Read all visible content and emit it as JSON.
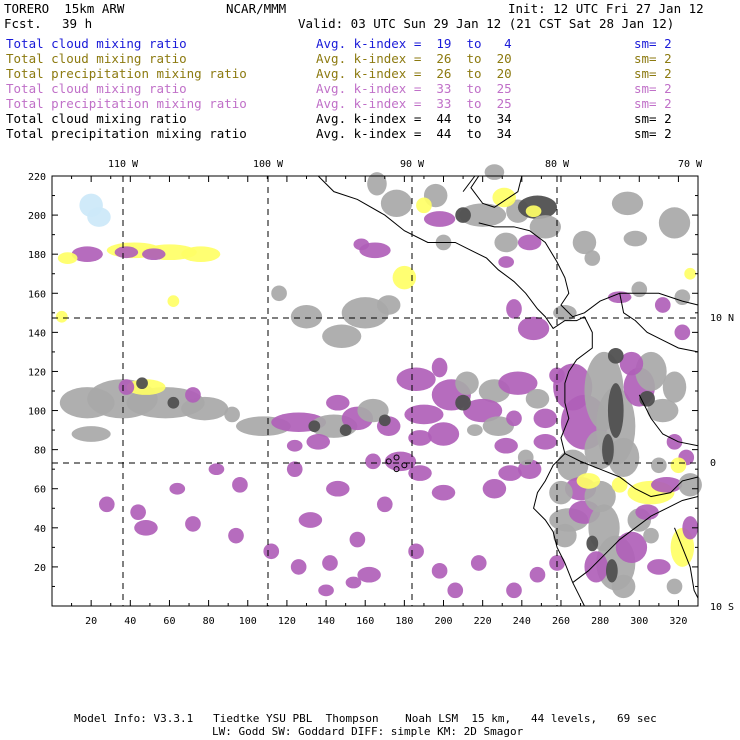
{
  "header": {
    "model": "TORERO  15km ARW",
    "org": "NCAR/MMM",
    "init": "Init: 12 UTC Fri 27 Jan 12",
    "fcst_label": "Fcst.",
    "fcst_value": "39 h",
    "valid": "Valid: 03 UTC Sun 29 Jan 12 (21 CST Sat 28 Jan 12)"
  },
  "legend": [
    {
      "field": "Total cloud mixing ratio",
      "index": "Avg. k-index =  19  to   4",
      "sm": "sm= 2",
      "color": "#1a1ad8"
    },
    {
      "field": "Total cloud mixing ratio",
      "index": "Avg. k-index =  26  to  20",
      "sm": "sm= 2",
      "color": "#8c7a10"
    },
    {
      "field": "Total precipitation mixing ratio",
      "index": "Avg. k-index =  26  to  20",
      "sm": "sm= 2",
      "color": "#8c7a10"
    },
    {
      "field": "Total cloud mixing ratio",
      "index": "Avg. k-index =  33  to  25",
      "sm": "sm= 2",
      "color": "#c070c8"
    },
    {
      "field": "Total precipitation mixing ratio",
      "index": "Avg. k-index =  33  to  25",
      "sm": "sm= 2",
      "color": "#c070c8"
    },
    {
      "field": "Total cloud mixing ratio",
      "index": "Avg. k-index =  44  to  34",
      "sm": "sm= 2",
      "color": "#000000"
    },
    {
      "field": "Total precipitation mixing ratio",
      "index": "Avg. k-index =  44  to  34",
      "sm": "sm= 2",
      "color": "#000000"
    }
  ],
  "map": {
    "lon_labels": [
      "110 W",
      "100 W",
      "90 W",
      "80 W",
      "70 W"
    ],
    "lat_labels": [
      "10 N",
      "0",
      "10 S"
    ],
    "x_ticks": [
      "20",
      "40",
      "60",
      "80",
      "100",
      "120",
      "140",
      "160",
      "180",
      "200",
      "220",
      "240",
      "260",
      "280",
      "300",
      "320"
    ],
    "y_ticks": [
      "220",
      "200",
      "180",
      "160",
      "140",
      "120",
      "100",
      "80",
      "60",
      "40",
      "20"
    ],
    "colors": {
      "light_blue": "#cce8f8",
      "yellow": "#ffff66",
      "purple": "#b060b8",
      "gray": "#a8a8a8",
      "dark": "#505050"
    }
  },
  "footer": {
    "line1": "Model Info: V3.3.1   Tiedtke YSU PBL  Thompson    Noah LSM  15 km,   44 levels,   69 sec",
    "line2": "LW: Godd SW: Goddard DIFF: simple KM: 2D Smagor"
  }
}
